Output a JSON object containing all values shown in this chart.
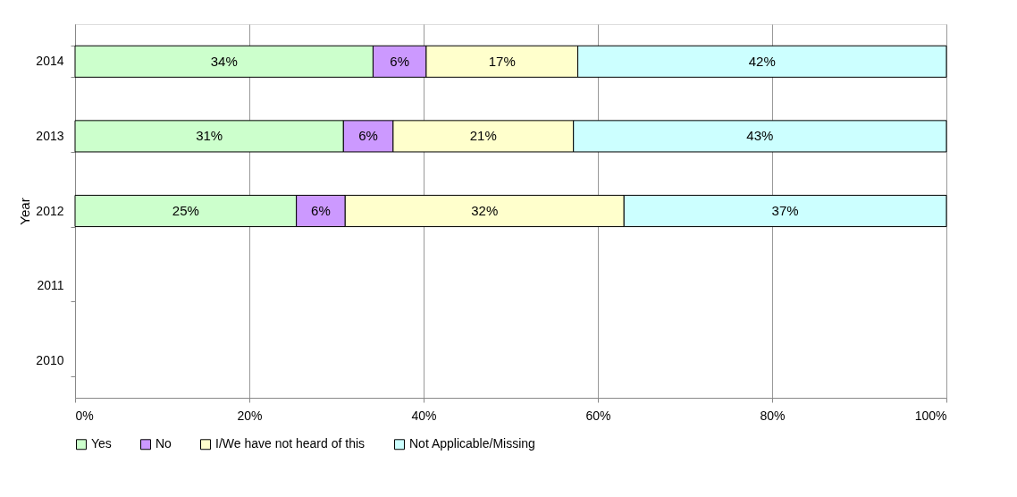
{
  "chart_data": {
    "type": "bar",
    "orientation": "horizontal",
    "stacked": true,
    "ylabel": "Year",
    "categories": [
      "2014",
      "2013",
      "2012",
      "2011",
      "2010"
    ],
    "series": [
      {
        "name": "Yes",
        "color": "#ccffcc",
        "values": [
          34.2,
          30.8,
          25.4,
          null,
          null
        ],
        "value_labels": [
          "34%",
          "31%",
          "25%",
          null,
          null
        ]
      },
      {
        "name": "No",
        "color": "#cc99ff",
        "values": [
          6.1,
          5.7,
          5.6,
          null,
          null
        ],
        "value_labels": [
          "6%",
          "6%",
          "6%",
          null,
          null
        ]
      },
      {
        "name": "I/We have not heard of this",
        "color": "#ffffcc",
        "values": [
          17.4,
          20.7,
          32.0,
          null,
          null
        ],
        "value_labels": [
          "17%",
          "21%",
          "32%",
          null,
          null
        ]
      },
      {
        "name": "Not Applicable/Missing",
        "color": "#ccffff",
        "values": [
          42.3,
          42.8,
          37.0,
          null,
          null
        ],
        "value_labels": [
          "42%",
          "43%",
          "37%",
          null,
          null
        ]
      }
    ],
    "xlim": [
      0,
      100
    ],
    "xticks": [
      {
        "value": 0,
        "label": "0%"
      },
      {
        "value": 20,
        "label": "20%"
      },
      {
        "value": 40,
        "label": "40%"
      },
      {
        "value": 60,
        "label": "60%"
      },
      {
        "value": 80,
        "label": "80%"
      },
      {
        "value": 100,
        "label": "100%"
      }
    ],
    "grid": "x",
    "legend": "bottom"
  }
}
